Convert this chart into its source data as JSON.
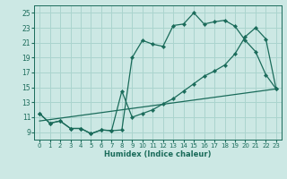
{
  "xlabel": "Humidex (Indice chaleur)",
  "bg_color": "#cce8e4",
  "grid_color": "#aad4ce",
  "line_color": "#1a6b5a",
  "xlim": [
    -0.5,
    23.5
  ],
  "ylim": [
    8.0,
    26.0
  ],
  "xticks": [
    0,
    1,
    2,
    3,
    4,
    5,
    6,
    7,
    8,
    9,
    10,
    11,
    12,
    13,
    14,
    15,
    16,
    17,
    18,
    19,
    20,
    21,
    22,
    23
  ],
  "yticks": [
    9,
    11,
    13,
    15,
    17,
    19,
    21,
    23,
    25
  ],
  "line1_x": [
    0,
    1,
    2,
    3,
    4,
    5,
    6,
    7,
    8,
    9,
    10,
    11,
    12,
    13,
    14,
    15,
    16,
    17,
    18,
    19,
    20,
    21,
    22,
    23
  ],
  "line1_y": [
    11.5,
    10.2,
    10.5,
    9.5,
    9.5,
    8.8,
    9.3,
    9.2,
    9.3,
    19.0,
    21.3,
    20.8,
    20.5,
    23.3,
    23.5,
    25.0,
    23.5,
    23.8,
    24.0,
    23.2,
    21.3,
    19.8,
    16.7,
    14.8
  ],
  "line2_x": [
    0,
    1,
    2,
    3,
    4,
    5,
    6,
    7,
    8,
    9,
    10,
    11,
    12,
    13,
    14,
    15,
    16,
    17,
    18,
    19,
    20,
    21,
    22,
    23
  ],
  "line2_y": [
    11.5,
    10.2,
    10.5,
    9.5,
    9.5,
    8.8,
    9.3,
    9.2,
    14.5,
    11.0,
    11.5,
    12.0,
    12.8,
    13.5,
    14.5,
    15.5,
    16.5,
    17.2,
    18.0,
    19.5,
    21.8,
    23.0,
    21.5,
    14.8
  ],
  "line3_x": [
    0,
    23
  ],
  "line3_y": [
    10.5,
    14.8
  ]
}
